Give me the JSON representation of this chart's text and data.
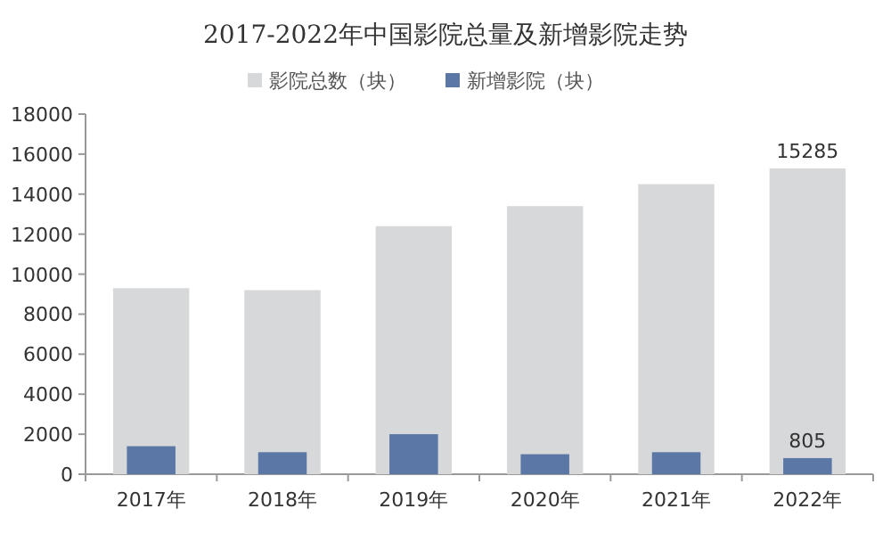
{
  "chart_data": {
    "type": "bar",
    "title": "2017-2022年中国影院总量及新增影院走势",
    "categories": [
      "2017年",
      "2018年",
      "2019年",
      "2020年",
      "2021年",
      "2022年"
    ],
    "series": [
      {
        "name": "影院总数（块）",
        "color": "#d7d8da",
        "values": [
          9300,
          9200,
          12400,
          13400,
          14500,
          15285
        ],
        "value_labels": [
          null,
          null,
          null,
          null,
          null,
          "15285"
        ]
      },
      {
        "name": "新增影院（块）",
        "color": "#5a77a6",
        "values": [
          1400,
          1100,
          2000,
          1000,
          1100,
          805
        ],
        "value_labels": [
          null,
          null,
          null,
          null,
          null,
          "805"
        ]
      }
    ],
    "ylim": [
      0,
      18000
    ],
    "yticks": [
      0,
      2000,
      4000,
      6000,
      8000,
      10000,
      12000,
      14000,
      16000,
      18000
    ],
    "legend": "top",
    "grid": false
  }
}
